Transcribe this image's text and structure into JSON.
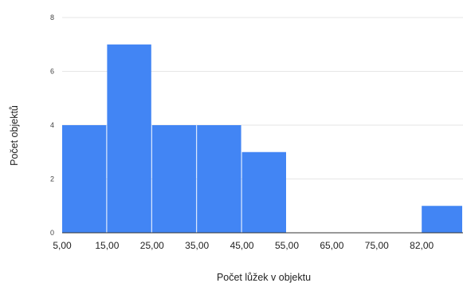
{
  "chart_data": {
    "type": "bar",
    "subtype": "histogram",
    "title": "",
    "xlabel": "Počet lůžek v objektu",
    "ylabel": "Počet objektů",
    "bin_edge_labels": [
      "5,00",
      "15,00",
      "25,00",
      "35,00",
      "45,00",
      "55,00",
      "65,00",
      "75,00",
      "82,00"
    ],
    "bins": [
      {
        "from": 5,
        "to": 15,
        "count": 4
      },
      {
        "from": 15,
        "to": 25,
        "count": 7
      },
      {
        "from": 25,
        "to": 35,
        "count": 4
      },
      {
        "from": 35,
        "to": 45,
        "count": 4
      },
      {
        "from": 45,
        "to": 55,
        "count": 3
      },
      {
        "from": 55,
        "to": 65,
        "count": 0
      },
      {
        "from": 65,
        "to": 75,
        "count": 0
      },
      {
        "from": 75,
        "to": 82,
        "count": 0
      },
      {
        "from": 82,
        "to": 92,
        "count": 1
      }
    ],
    "y_ticks": [
      "0",
      "2",
      "4",
      "6",
      "8"
    ],
    "ylim": [
      0,
      8
    ],
    "grid": true,
    "legend": "none",
    "colors": {
      "bar": "#4285F4",
      "grid": "#E6E6E6",
      "axis": "#333333"
    }
  }
}
